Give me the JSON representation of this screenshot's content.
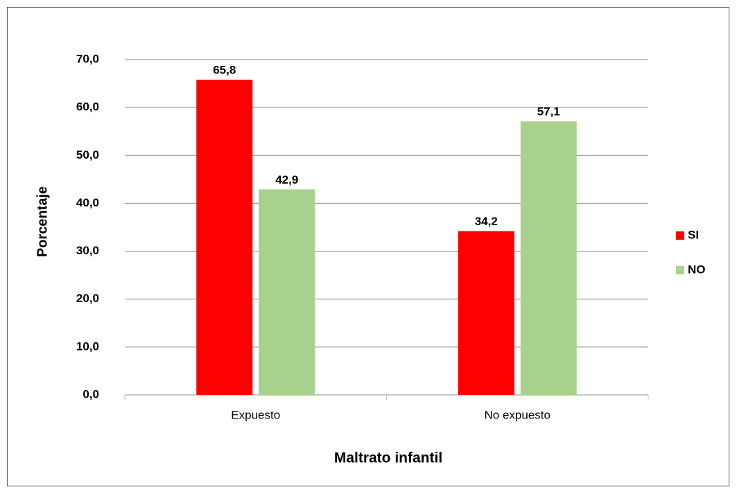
{
  "chart_data": {
    "type": "bar",
    "x_label": "Maltrato infantil",
    "y_label": "Porcentaje",
    "categories": [
      "Expuesto",
      "No expuesto"
    ],
    "series": [
      {
        "name": "SI",
        "color": "#ff0000",
        "values": [
          65.8,
          34.2
        ],
        "value_labels": [
          "65,8",
          "34,2"
        ]
      },
      {
        "name": "NO",
        "color": "#a9d18e",
        "values": [
          42.9,
          57.1
        ],
        "value_labels": [
          "42,9",
          "57,1"
        ]
      }
    ],
    "ylim": [
      0,
      70
    ],
    "yticks": [
      {
        "value": 0,
        "label": "0,0"
      },
      {
        "value": 10,
        "label": "10,0"
      },
      {
        "value": 20,
        "label": "20,0"
      },
      {
        "value": 30,
        "label": "30,0"
      },
      {
        "value": 40,
        "label": "40,0"
      },
      {
        "value": 50,
        "label": "50,0"
      },
      {
        "value": 60,
        "label": "60,0"
      },
      {
        "value": 70,
        "label": "70,0"
      }
    ],
    "grid": true,
    "legend": "right"
  }
}
